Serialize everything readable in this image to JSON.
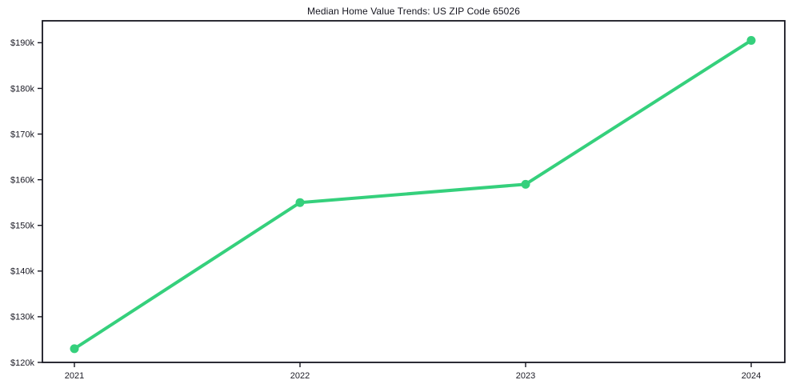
{
  "chart_data": {
    "type": "line",
    "title": "Median Home Value Trends: US ZIP Code 65026",
    "categories": [
      "2021",
      "2022",
      "2023",
      "2024"
    ],
    "x": [
      2021,
      2022,
      2023,
      2024
    ],
    "series": [
      {
        "name": "Median Home Value",
        "values": [
          123000,
          155000,
          159000,
          190500
        ]
      }
    ],
    "xlabel": "",
    "ylabel": "",
    "y_ticks": [
      120000,
      130000,
      140000,
      150000,
      160000,
      170000,
      180000,
      190000
    ],
    "y_tick_labels": [
      "$120k",
      "$130k",
      "$140k",
      "$150k",
      "$160k",
      "$170k",
      "$180k",
      "$190k"
    ],
    "ylim": [
      120000,
      194800
    ],
    "grid": false,
    "legend": "none",
    "line_color": "#35d07c",
    "marker": "circle",
    "axis_color": "#15151f",
    "text_color": "#1a1a24"
  }
}
